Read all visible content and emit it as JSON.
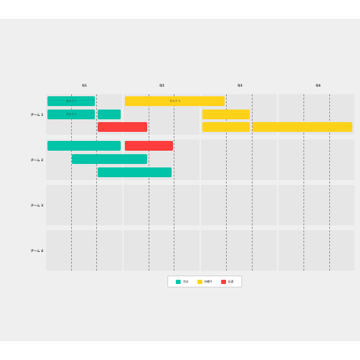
{
  "quarters": [
    "Q1",
    "Q2",
    "Q3",
    "Q4"
  ],
  "teams": [
    "チーム 1",
    "チーム 2",
    "チーム 3",
    "チーム 4"
  ],
  "status_colors": {
    "complete": "#00c4a7",
    "in_progress": "#ffd21a",
    "delayed": "#ff3d3d"
  },
  "tasks": [
    {
      "team": 1,
      "lane": 1,
      "label": "タスク 1",
      "status": "complete"
    },
    {
      "team": 1,
      "lane": 2,
      "label": "タスク 2",
      "status": "complete"
    },
    {
      "team": 1,
      "lane": 2,
      "label": "",
      "status": "complete"
    },
    {
      "team": 1,
      "lane": 3,
      "label": "",
      "status": "delayed"
    },
    {
      "team": 1,
      "lane": 1,
      "label": "タスク 3",
      "status": "in_progress"
    },
    {
      "team": 1,
      "lane": 2,
      "label": "",
      "status": "in_progress"
    },
    {
      "team": 1,
      "lane": 3,
      "label": "",
      "status": "in_progress"
    },
    {
      "team": 1,
      "lane": 3,
      "label": "",
      "status": "in_progress"
    },
    {
      "team": 2,
      "lane": 1,
      "label": "",
      "status": "complete"
    },
    {
      "team": 2,
      "lane": 1,
      "label": "",
      "status": "delayed"
    },
    {
      "team": 2,
      "lane": 2,
      "label": "",
      "status": "complete"
    },
    {
      "team": 2,
      "lane": 3,
      "label": "",
      "status": "complete"
    }
  ],
  "legend": [
    {
      "key": "complete",
      "label": "完成"
    },
    {
      "key": "in_progress",
      "label": "持續中"
    },
    {
      "key": "delayed",
      "label": "延遲"
    }
  ]
}
